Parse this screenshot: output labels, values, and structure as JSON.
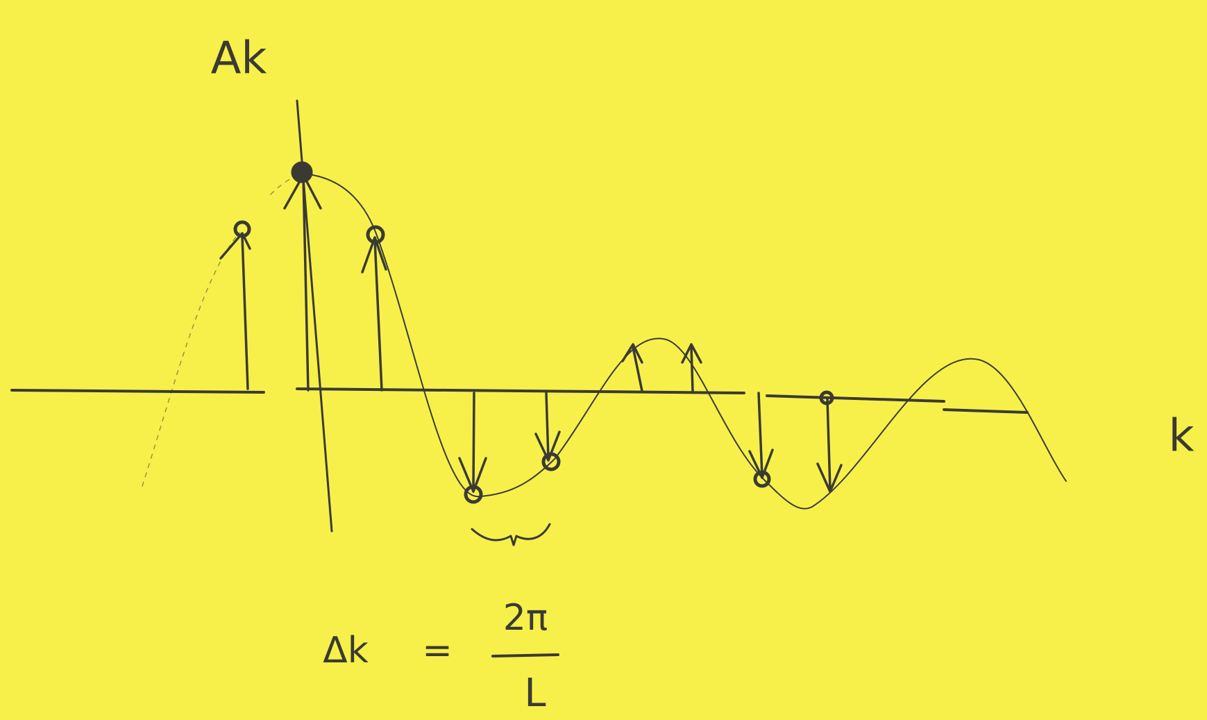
{
  "labels": {
    "y_axis": "Ak",
    "x_axis": "k"
  },
  "formula": {
    "lhs": "Δk",
    "equals": "=",
    "numerator": "2π",
    "denominator": "L"
  }
}
